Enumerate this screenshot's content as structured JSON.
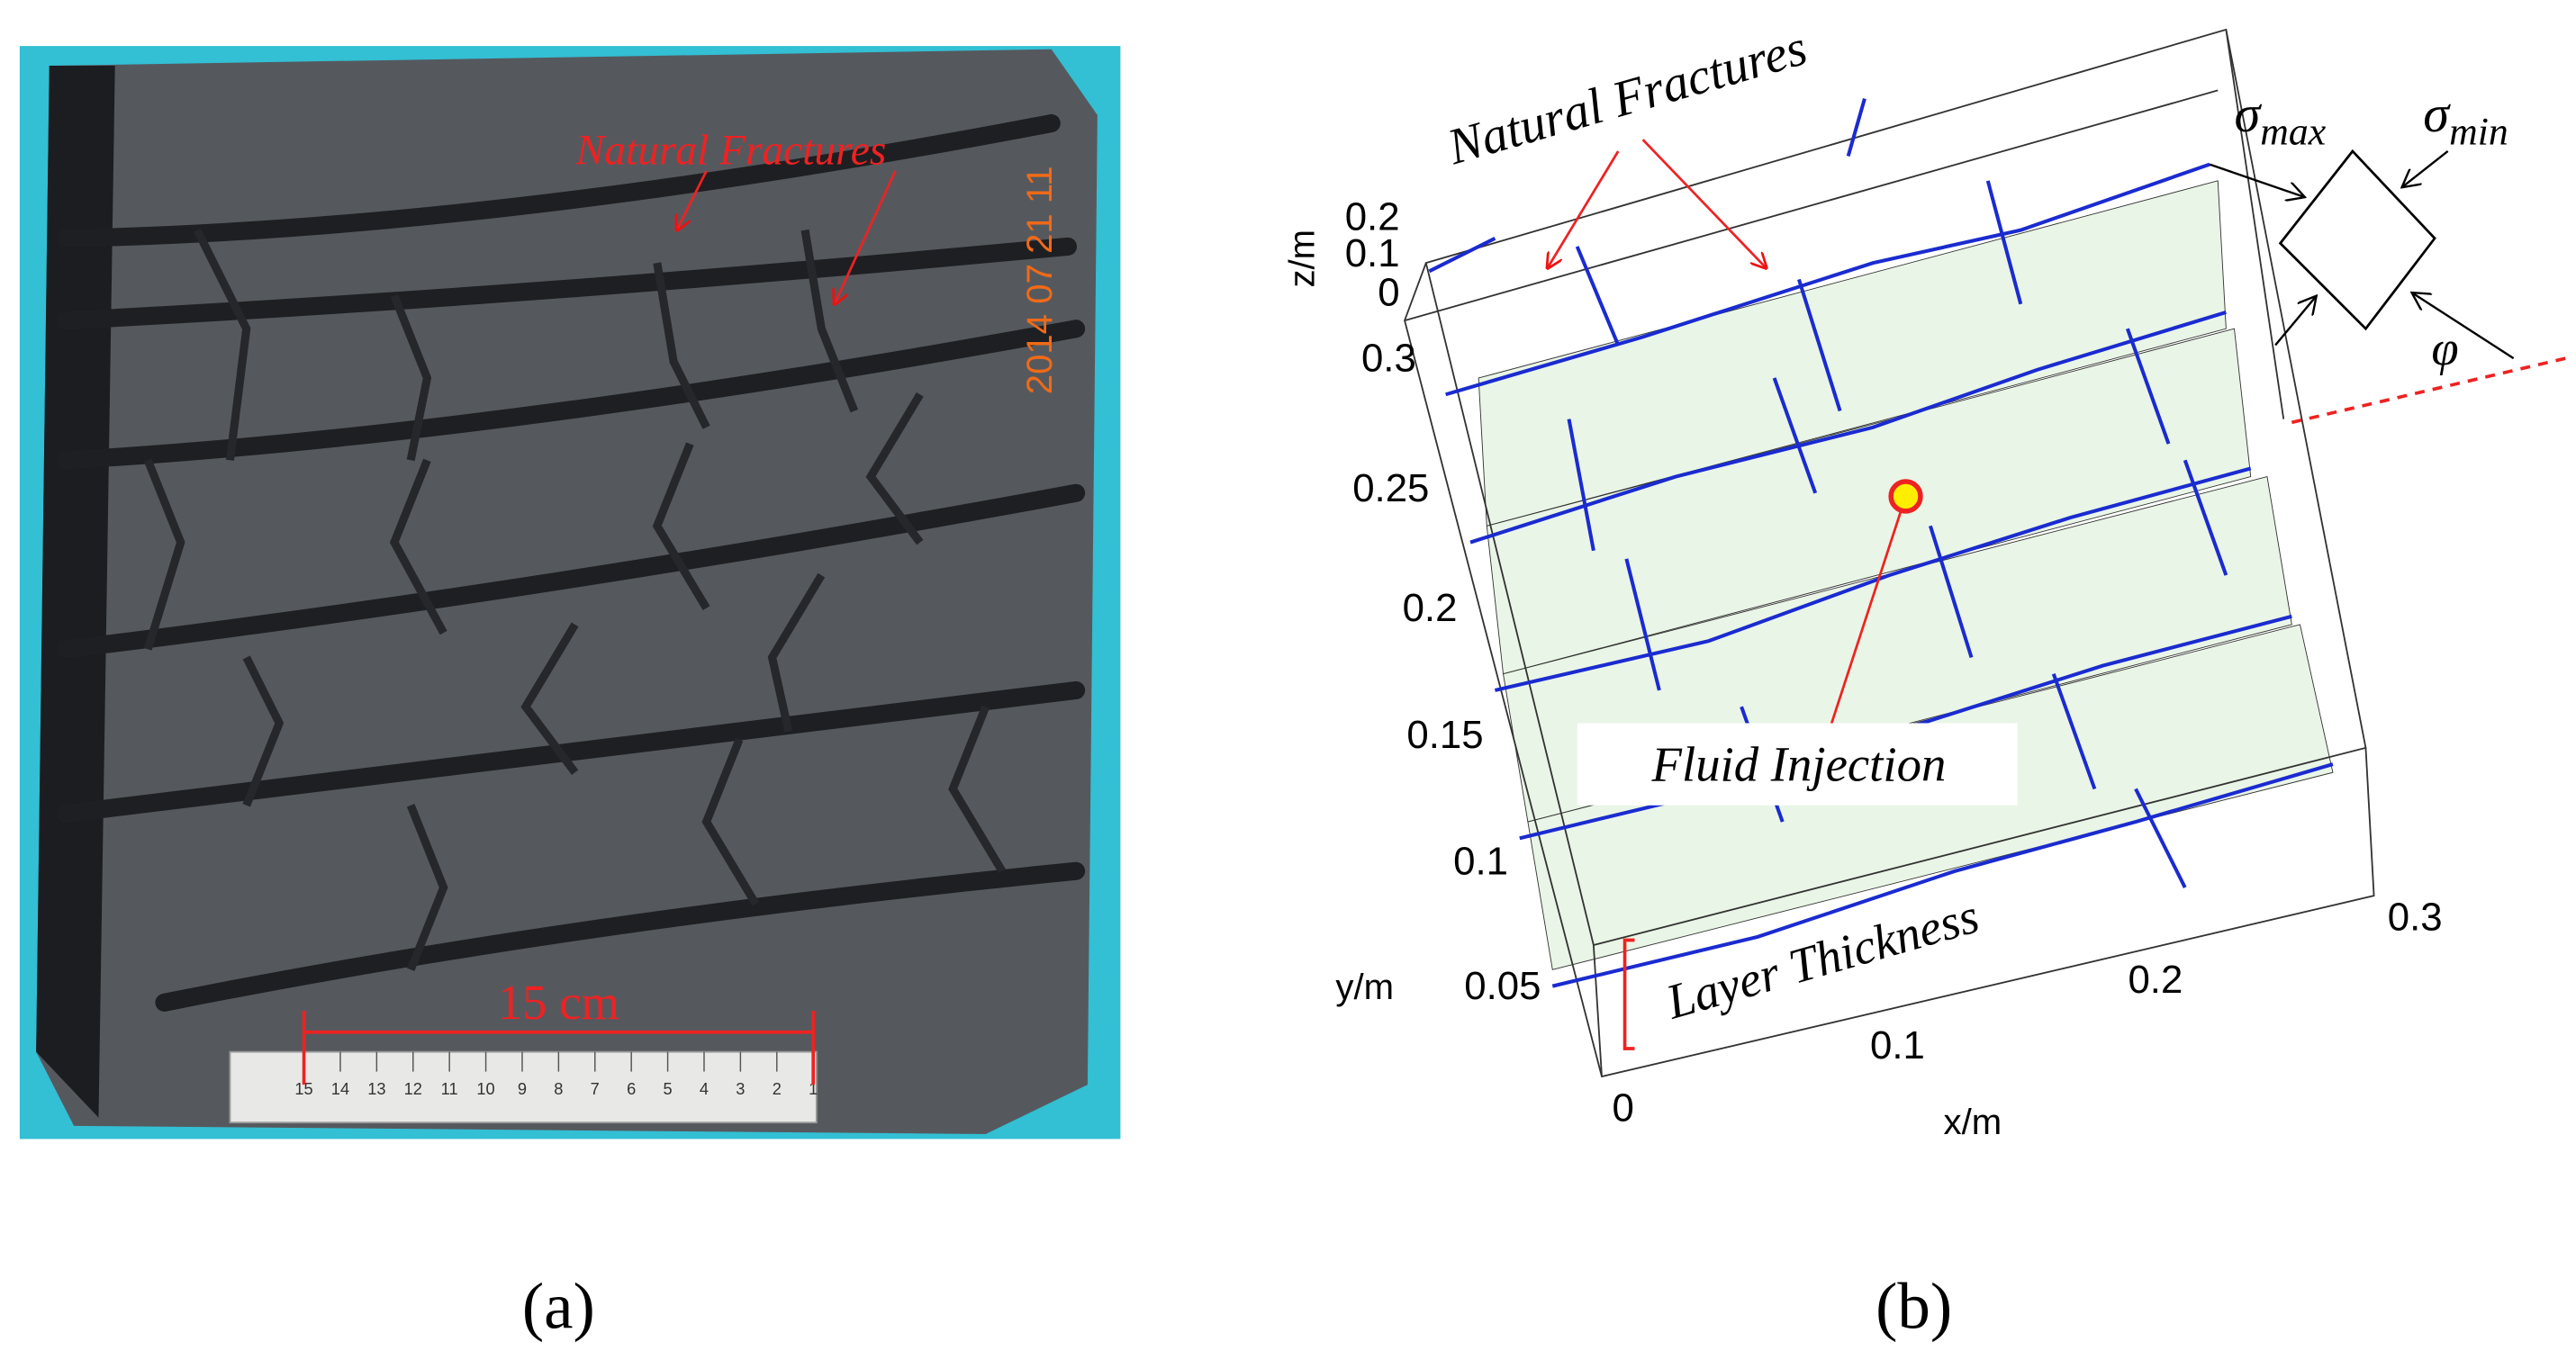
{
  "panel_a": {
    "annotation": "Natural Fractures",
    "scale_label": "15 cm",
    "timestamp": "2014 07 21 11",
    "ruler_numbers": [
      "15",
      "14",
      "13",
      "12",
      "11",
      "10",
      "9",
      "8",
      "7",
      "6",
      "5",
      "4",
      "3",
      "2",
      "1"
    ],
    "caption": "(a)"
  },
  "panel_b": {
    "annotation": "Natural Fractures",
    "injection_label": "Fluid Injection",
    "layer_label": "Layer Thickness",
    "z_axis": {
      "label": "z/m",
      "ticks": [
        "0.2",
        "0.1",
        "0"
      ]
    },
    "y_axis": {
      "label": "y/m",
      "ticks": [
        "0.3",
        "0.25",
        "0.2",
        "0.15",
        "0.1",
        "0.05"
      ]
    },
    "x_axis": {
      "label": "x/m",
      "ticks": [
        "0",
        "0.1",
        "0.2",
        "0.3"
      ]
    },
    "stress_max": {
      "symbol": "σ",
      "subscript": "max"
    },
    "stress_min": {
      "symbol": "σ",
      "subscript": "min"
    },
    "angle": "φ",
    "caption": "(b)"
  }
}
